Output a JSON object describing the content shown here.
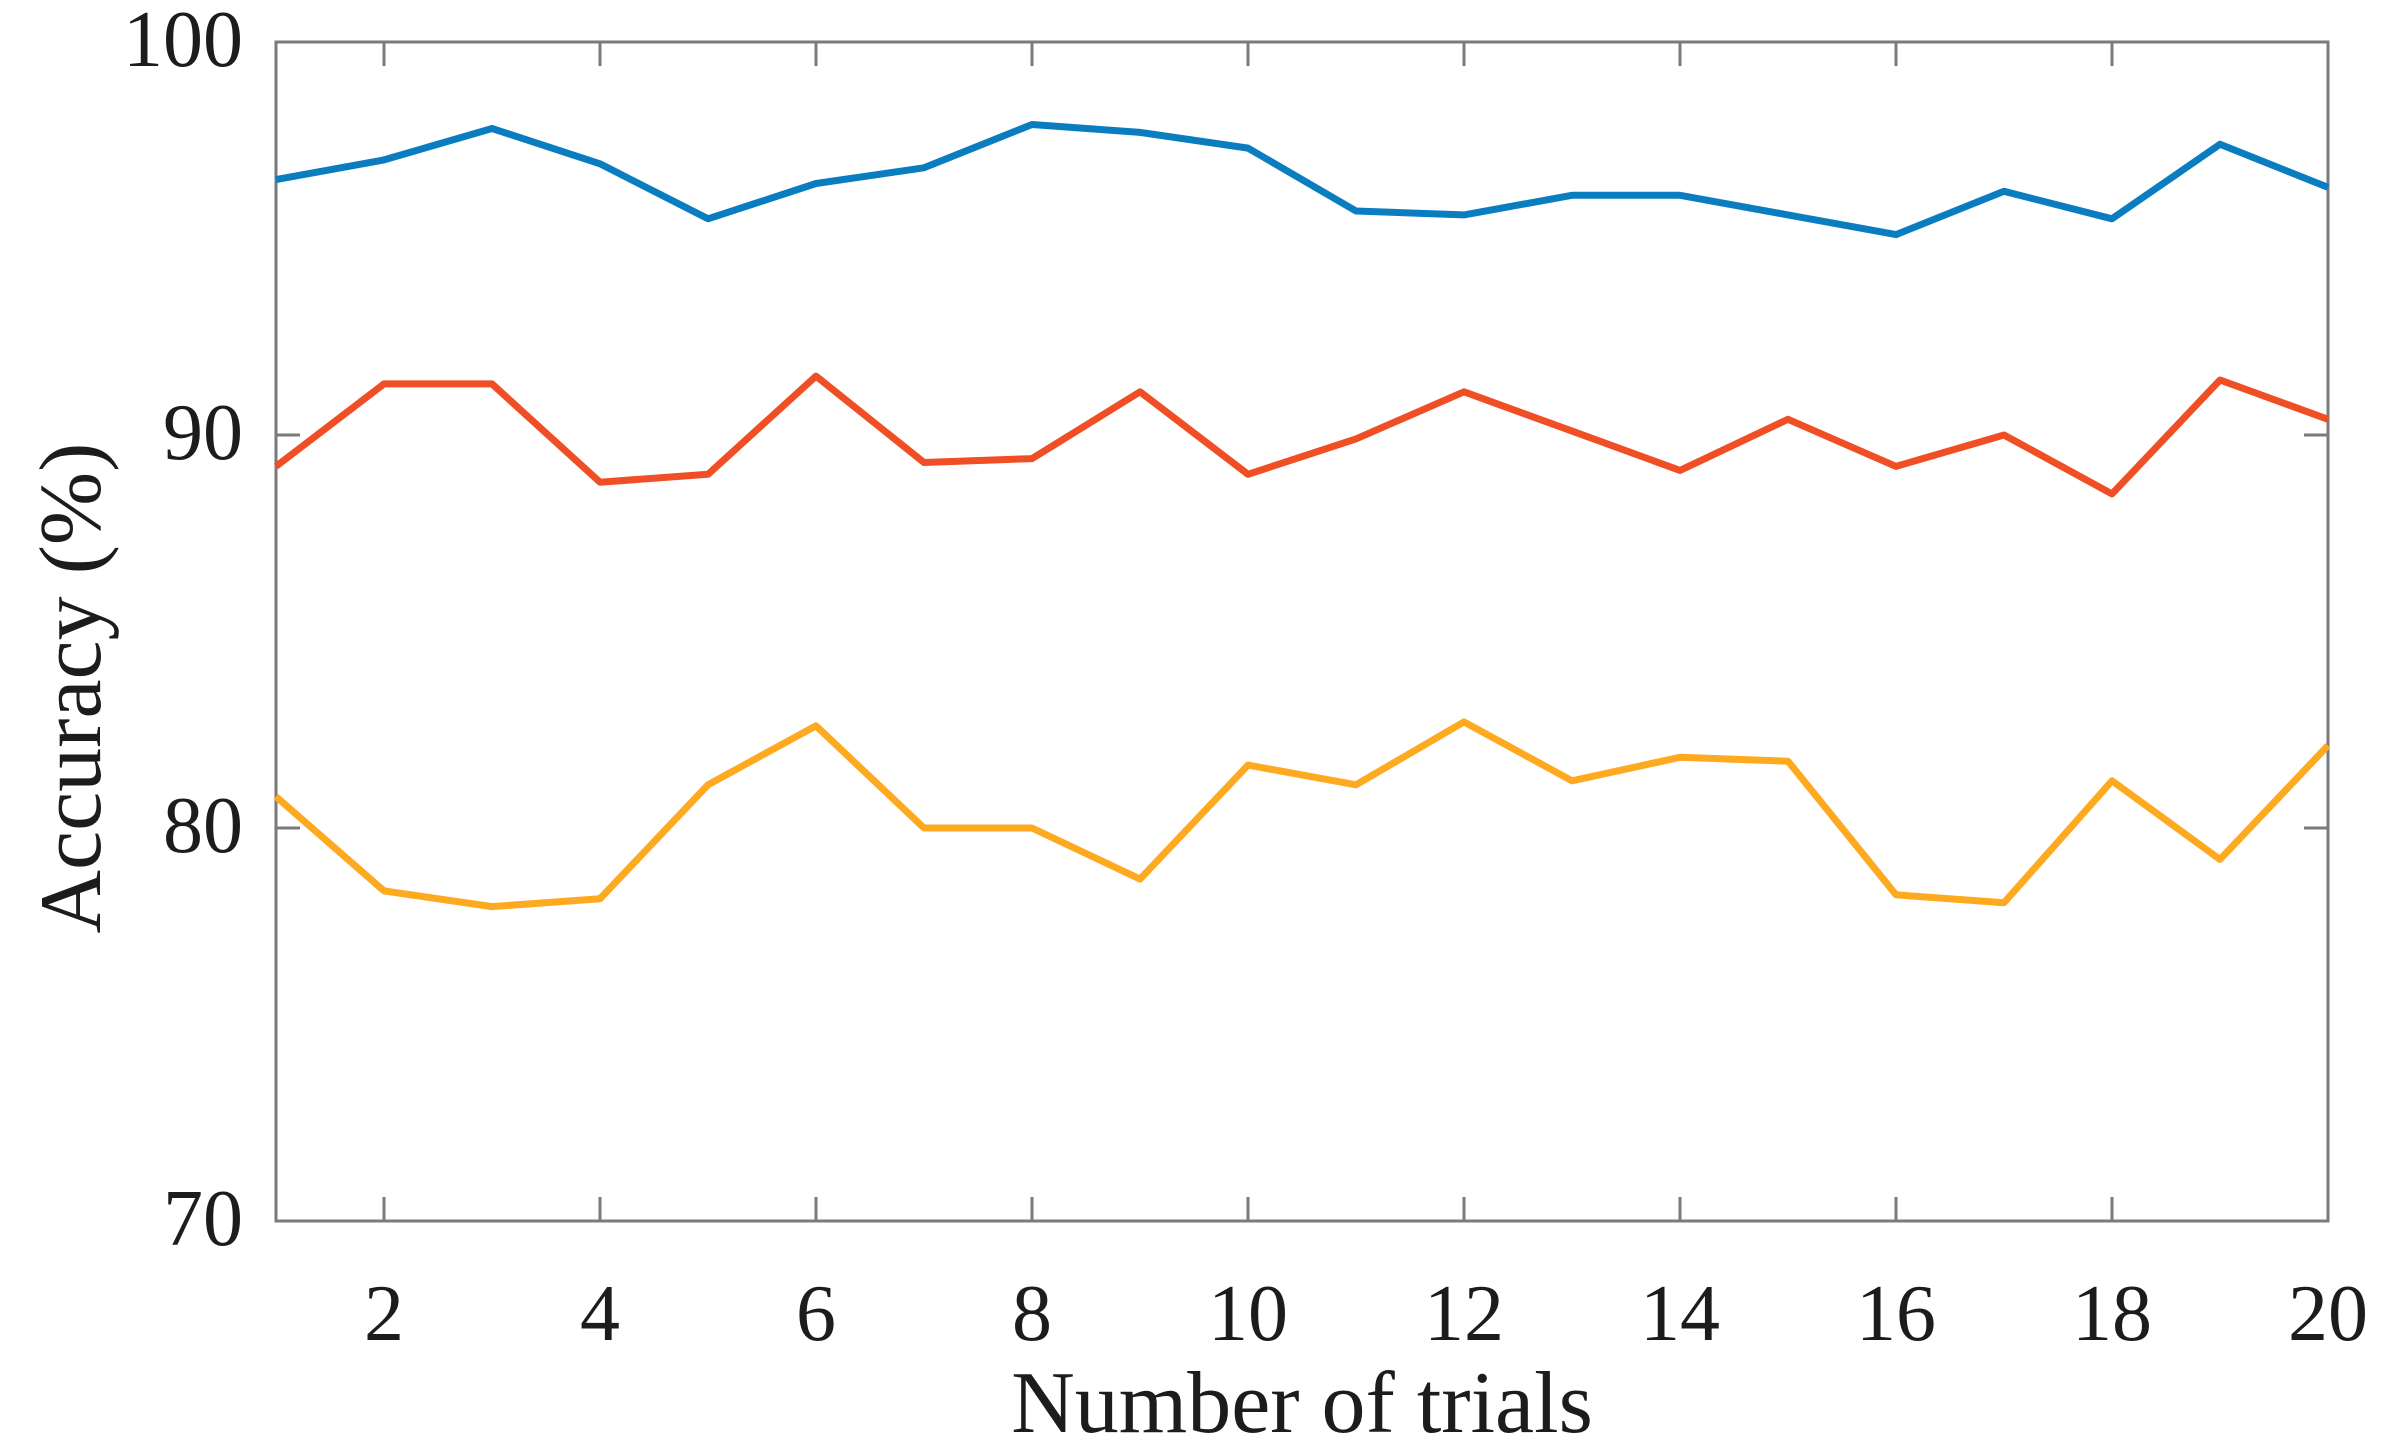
{
  "figure": {
    "xlabel": "Number of trials",
    "ylabel": "Accuracy (%)"
  },
  "chart_data": {
    "type": "line",
    "title": "",
    "xlabel": "Number of trials",
    "ylabel": "Accuracy (%)",
    "x": [
      1,
      2,
      3,
      4,
      5,
      6,
      7,
      8,
      9,
      10,
      11,
      12,
      13,
      14,
      15,
      16,
      17,
      18,
      19,
      20
    ],
    "series": [
      {
        "name": "blue",
        "color": "#0a7dc1",
        "values": [
          96.5,
          97.0,
          97.8,
          96.9,
          95.5,
          96.4,
          96.8,
          97.9,
          97.7,
          97.3,
          95.7,
          95.6,
          96.1,
          96.1,
          95.6,
          95.1,
          96.2,
          95.5,
          97.4,
          96.3
        ]
      },
      {
        "name": "orange",
        "color": "#f04e24",
        "values": [
          89.2,
          91.3,
          91.3,
          88.8,
          89.0,
          91.5,
          89.3,
          89.4,
          91.1,
          89.0,
          89.9,
          91.1,
          90.1,
          89.1,
          90.4,
          89.2,
          90.0,
          88.5,
          91.4,
          90.4
        ]
      },
      {
        "name": "yellow",
        "color": "#feaa20",
        "values": [
          80.8,
          78.4,
          78.0,
          78.2,
          81.1,
          82.6,
          80.0,
          80.0,
          78.7,
          81.6,
          81.1,
          82.7,
          81.2,
          81.8,
          81.7,
          78.3,
          78.1,
          81.2,
          79.2,
          82.1
        ]
      }
    ],
    "xlim": [
      1,
      20
    ],
    "ylim": [
      70,
      100
    ],
    "xticks": [
      2,
      4,
      6,
      8,
      10,
      12,
      14,
      16,
      18,
      20
    ],
    "yticks": [
      70,
      80,
      90,
      100
    ],
    "grid": false,
    "legend": "none",
    "axis_color": "#7a7a7a",
    "text_color": "#1c1c1c",
    "line_width": 7
  }
}
